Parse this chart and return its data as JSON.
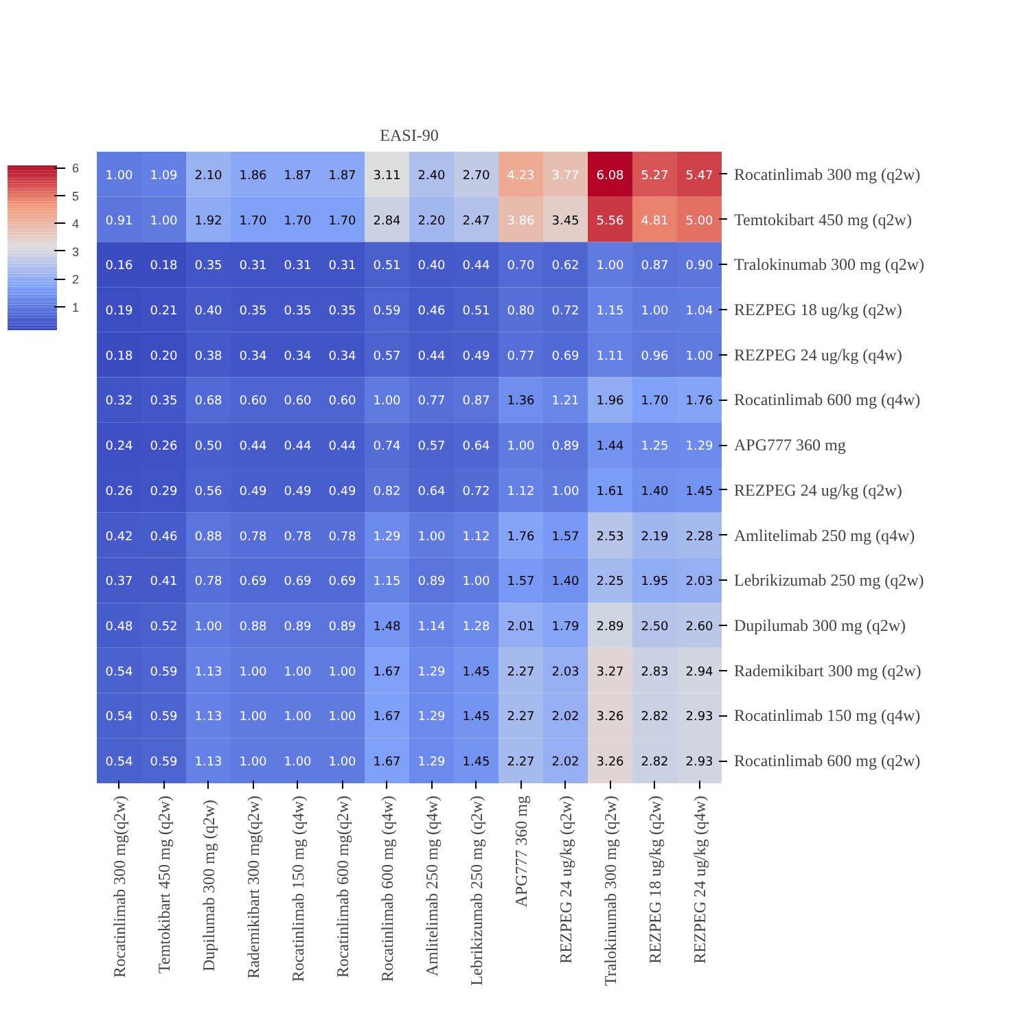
{
  "chart_data": {
    "type": "heatmap",
    "title": "EASI-90",
    "categories": [
      "Rocatinlimab 300 mg(q2w)",
      "Temtokibart 450 mg (q2w)",
      "Dupilumab  300 mg (q2w)",
      "Rademikibart 300 mg(q2w)",
      "Rocatinlimab 150 mg (q4w)",
      "Rocatinlimab 600 mg(q2w)",
      "Rocatinlimab 600 mg (q4w)",
      "Amlitelimab 250 mg (q4w)",
      "Lebrikizumab 250 mg (q2w)",
      "APG777 360 mg",
      "REZPEG 24 ug/kg (q2w)",
      "Tralokinumab 300 mg (q2w)",
      "REZPEG 18 ug/kg (q2w)",
      "REZPEG 24 ug/kg (q4w)"
    ],
    "y_categories": [
      "Rocatinlimab 300 mg (q2w)",
      "Temtokibart 450 mg (q2w)",
      "Tralokinumab 300 mg (q2w)",
      "REZPEG 18 ug/kg (q2w)",
      "REZPEG 24 ug/kg (q4w)",
      "Rocatinlimab 600 mg (q4w)",
      "APG777 360 mg",
      "REZPEG 24 ug/kg (q2w)",
      "Amlitelimab 250 mg (q4w)",
      "Lebrikizumab 250 mg (q2w)",
      "Dupilumab  300 mg (q2w)",
      "Rademikibart 300 mg (q2w)",
      "Rocatinlimab 150 mg (q4w)",
      "Rocatinlimab 600 mg (q2w)"
    ],
    "cells": [
      [
        1.0,
        1.09,
        2.1,
        1.86,
        1.87,
        1.87,
        3.11,
        2.4,
        2.7,
        4.23,
        3.77,
        6.08,
        5.27,
        5.47
      ],
      [
        0.91,
        1.0,
        1.92,
        1.7,
        1.7,
        1.7,
        2.84,
        2.2,
        2.47,
        3.86,
        3.45,
        5.56,
        4.81,
        5.0
      ],
      [
        0.16,
        0.18,
        0.35,
        0.31,
        0.31,
        0.31,
        0.51,
        0.4,
        0.44,
        0.7,
        0.62,
        1.0,
        0.87,
        0.9
      ],
      [
        0.19,
        0.21,
        0.4,
        0.35,
        0.35,
        0.35,
        0.59,
        0.46,
        0.51,
        0.8,
        0.72,
        1.15,
        1.0,
        1.04
      ],
      [
        0.18,
        0.2,
        0.38,
        0.34,
        0.34,
        0.34,
        0.57,
        0.44,
        0.49,
        0.77,
        0.69,
        1.11,
        0.96,
        1.0
      ],
      [
        0.32,
        0.35,
        0.68,
        0.6,
        0.6,
        0.6,
        1.0,
        0.77,
        0.87,
        1.36,
        1.21,
        1.96,
        1.7,
        1.76
      ],
      [
        0.24,
        0.26,
        0.5,
        0.44,
        0.44,
        0.44,
        0.74,
        0.57,
        0.64,
        1.0,
        0.89,
        1.44,
        1.25,
        1.29
      ],
      [
        0.26,
        0.29,
        0.56,
        0.49,
        0.49,
        0.49,
        0.82,
        0.64,
        0.72,
        1.12,
        1.0,
        1.61,
        1.4,
        1.45
      ],
      [
        0.42,
        0.46,
        0.88,
        0.78,
        0.78,
        0.78,
        1.29,
        1.0,
        1.12,
        1.76,
        1.57,
        2.53,
        2.19,
        2.28
      ],
      [
        0.37,
        0.41,
        0.78,
        0.69,
        0.69,
        0.69,
        1.15,
        0.89,
        1.0,
        1.57,
        1.4,
        2.25,
        1.95,
        2.03
      ],
      [
        0.48,
        0.52,
        1.0,
        0.88,
        0.89,
        0.89,
        1.48,
        1.14,
        1.28,
        2.01,
        1.79,
        2.89,
        2.5,
        2.6
      ],
      [
        0.54,
        0.59,
        1.13,
        1.0,
        1.0,
        1.0,
        1.67,
        1.29,
        1.45,
        2.27,
        2.03,
        3.27,
        2.83,
        2.94
      ],
      [
        0.54,
        0.59,
        1.13,
        1.0,
        1.0,
        1.0,
        1.67,
        1.29,
        1.45,
        2.27,
        2.02,
        3.26,
        2.82,
        2.93
      ],
      [
        0.54,
        0.59,
        1.13,
        1.0,
        1.0,
        1.0,
        1.67,
        1.29,
        1.45,
        2.27,
        2.02,
        3.26,
        2.82,
        2.93
      ]
    ],
    "cell_labels": [
      [
        "1.00",
        "1.09",
        "2.10",
        "1.86",
        "1.87",
        "1.87",
        "3.11",
        "2.40",
        "2.70",
        "4.23",
        "3.77",
        "6.08",
        "5.27",
        "5.47"
      ],
      [
        "0.91",
        "1.00",
        "1.92",
        "1.70",
        "1.70",
        "1.70",
        "2.84",
        "2.20",
        "2.47",
        "3.86",
        "3.45",
        "5.56",
        "4.81",
        "5.00"
      ],
      [
        "0.16",
        "0.18",
        "0.35",
        "0.31",
        "0.31",
        "0.31",
        "0.51",
        "0.40",
        "0.44",
        "0.70",
        "0.62",
        "1.00",
        "0.87",
        "0.90"
      ],
      [
        "0.19",
        "0.21",
        "0.40",
        "0.35",
        "0.35",
        "0.35",
        "0.59",
        "0.46",
        "0.51",
        "0.80",
        "0.72",
        "1.15",
        "1.00",
        "1.04"
      ],
      [
        "0.18",
        "0.20",
        "0.38",
        "0.34",
        "0.34",
        "0.34",
        "0.57",
        "0.44",
        "0.49",
        "0.77",
        "0.69",
        "1.11",
        "0.96",
        "1.00"
      ],
      [
        "0.32",
        "0.35",
        "0.68",
        "0.60",
        "0.60",
        "0.60",
        "1.00",
        "0.77",
        "0.87",
        "1.36",
        "1.21",
        "1.96",
        "1.70",
        "1.76"
      ],
      [
        "0.24",
        "0.26",
        "0.50",
        "0.44",
        "0.44",
        "0.44",
        "0.74",
        "0.57",
        "0.64",
        "1.00",
        "0.89",
        "1.44",
        "1.25",
        "1.29"
      ],
      [
        "0.26",
        "0.29",
        "0.56",
        "0.49",
        "0.49",
        "0.49",
        "0.82",
        "0.64",
        "0.72",
        "1.12",
        "1.00",
        "1.61",
        "1.40",
        "1.45"
      ],
      [
        "0.42",
        "0.46",
        "0.88",
        "0.78",
        "0.78",
        "0.78",
        "1.29",
        "1.00",
        "1.12",
        "1.76",
        "1.57",
        "2.53",
        "2.19",
        "2.28"
      ],
      [
        "0.37",
        "0.41",
        "0.78",
        "0.69",
        "0.69",
        "0.69",
        "1.15",
        "0.89",
        "1.00",
        "1.57",
        "1.40",
        "2.25",
        "1.95",
        "2.03"
      ],
      [
        "0.48",
        "0.52",
        "1.00",
        "0.88",
        "0.89",
        "0.89",
        "1.48",
        "1.14",
        "1.28",
        "2.01",
        "1.79",
        "2.89",
        "2.50",
        "2.60"
      ],
      [
        "0.54",
        "0.59",
        "1.13",
        "1.00",
        "1.00",
        "1.00",
        "1.67",
        "1.29",
        "1.45",
        "2.27",
        "2.03",
        "3.27",
        "2.83",
        "2.94"
      ],
      [
        "0.54",
        "0.59",
        "1.13",
        "1.00",
        "1.00",
        "1.00",
        "1.67",
        "1.29",
        "1.45",
        "2.27",
        "2.02",
        "3.26",
        "2.82",
        "2.93"
      ],
      [
        "0.54",
        "0.59",
        "1.13",
        "1.00",
        "1.00",
        "1.00",
        "1.67",
        "1.29",
        "1.45",
        "2.27",
        "2.02",
        "3.26",
        "2.82",
        "2.93"
      ]
    ],
    "clim": [
      0.16,
      6.08
    ],
    "cticks": [
      1,
      2,
      3,
      4,
      5,
      6
    ]
  }
}
